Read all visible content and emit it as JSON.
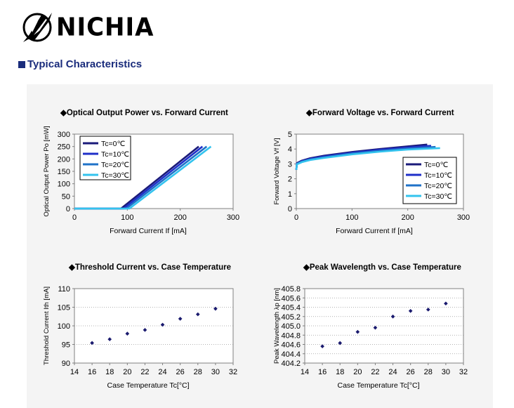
{
  "header": {
    "logo_text": "NICHIA",
    "section_title": "Typical Characteristics"
  },
  "colors": {
    "tc0": "#1a1a7a",
    "tc10": "#1f2fc8",
    "tc20": "#1f72c8",
    "tc30": "#33c3ee",
    "dot": "#1a1a6e",
    "section": "#1a2c7c"
  },
  "chart_data": [
    {
      "type": "line",
      "title": "◆Optical Output Power vs. Forward Current",
      "xlabel": "Forward Current If [mA]",
      "ylabel": "Optical Output Power Po [mW]",
      "xlim": [
        0,
        300
      ],
      "ylim": [
        0,
        300
      ],
      "xticks": [
        "0",
        "100",
        "200",
        "300"
      ],
      "yticks": [
        "0",
        "50",
        "100",
        "150",
        "200",
        "250",
        "300"
      ],
      "legend": "top-left",
      "series": [
        {
          "name": "Tc=0℃",
          "color": "#1a1a7a",
          "x": [
            0,
            88,
            235
          ],
          "y": [
            0,
            0,
            250
          ]
        },
        {
          "name": "Tc=10℃",
          "color": "#1f2fc8",
          "x": [
            0,
            93,
            242
          ],
          "y": [
            0,
            0,
            250
          ]
        },
        {
          "name": "Tc=20℃",
          "color": "#1f72c8",
          "x": [
            0,
            98,
            250
          ],
          "y": [
            0,
            0,
            250
          ]
        },
        {
          "name": "Tc=30℃",
          "color": "#33c3ee",
          "x": [
            0,
            104,
            258
          ],
          "y": [
            0,
            0,
            250
          ]
        }
      ]
    },
    {
      "type": "line",
      "title": "◆Forward Voltage vs. Forward Current",
      "xlabel": "Forward Current If [mA]",
      "ylabel": "Forward Voltage Vf [V]",
      "xlim": [
        0,
        300
      ],
      "ylim": [
        0,
        5
      ],
      "xticks": [
        "0",
        "100",
        "200",
        "300"
      ],
      "yticks": [
        "0",
        "1",
        "2",
        "3",
        "4",
        "5"
      ],
      "legend": "bottom-right",
      "series": [
        {
          "name": "Tc=0℃",
          "color": "#1a1a7a",
          "x": [
            0,
            1,
            10,
            25,
            50,
            100,
            150,
            200,
            235
          ],
          "y": [
            2.6,
            3.05,
            3.22,
            3.38,
            3.55,
            3.8,
            4.0,
            4.18,
            4.3
          ]
        },
        {
          "name": "Tc=10℃",
          "color": "#1f2fc8",
          "x": [
            0,
            1,
            10,
            25,
            50,
            100,
            150,
            200,
            242
          ],
          "y": [
            2.6,
            3.02,
            3.19,
            3.34,
            3.5,
            3.75,
            3.95,
            4.1,
            4.22
          ]
        },
        {
          "name": "Tc=20℃",
          "color": "#1f72c8",
          "x": [
            0,
            1,
            10,
            25,
            50,
            100,
            150,
            200,
            250
          ],
          "y": [
            2.6,
            3.0,
            3.16,
            3.3,
            3.45,
            3.7,
            3.88,
            4.03,
            4.14
          ]
        },
        {
          "name": "Tc=30℃",
          "color": "#33c3ee",
          "x": [
            0,
            1,
            10,
            25,
            50,
            100,
            150,
            200,
            258
          ],
          "y": [
            2.6,
            2.97,
            3.12,
            3.26,
            3.4,
            3.64,
            3.82,
            3.96,
            4.06
          ]
        }
      ]
    },
    {
      "type": "scatter",
      "title": "◆Threshold Current vs. Case Temperature",
      "xlabel": "Case Temperature Tc[°C]",
      "ylabel": "Threshold Current Ith [mA]",
      "xlim": [
        14,
        32
      ],
      "ylim": [
        90,
        110
      ],
      "xticks": [
        "14",
        "16",
        "18",
        "20",
        "22",
        "24",
        "26",
        "28",
        "30",
        "32"
      ],
      "yticks": [
        "90",
        "95",
        "100",
        "105",
        "110"
      ],
      "x": [
        16,
        18,
        20,
        22,
        24,
        26,
        28,
        30
      ],
      "y": [
        95.4,
        96.4,
        97.9,
        98.9,
        100.3,
        101.9,
        103.1,
        104.6
      ]
    },
    {
      "type": "scatter",
      "title": "◆Peak Wavelength vs. Case Temperature",
      "xlabel": "Case Temperature Tc[°C]",
      "ylabel": "Peak Wavelength λp [nm]",
      "xlim": [
        14,
        32
      ],
      "ylim": [
        404.2,
        405.8
      ],
      "xticks": [
        "14",
        "16",
        "18",
        "20",
        "22",
        "24",
        "26",
        "28",
        "30",
        "32"
      ],
      "yticks": [
        "404.2",
        "404.4",
        "404.6",
        "404.8",
        "405.0",
        "405.2",
        "405.4",
        "405.6",
        "405.8"
      ],
      "x": [
        16,
        18,
        20,
        22,
        24,
        26,
        28,
        30
      ],
      "y": [
        404.56,
        404.63,
        404.87,
        404.96,
        405.2,
        405.32,
        405.35,
        405.48
      ]
    }
  ]
}
